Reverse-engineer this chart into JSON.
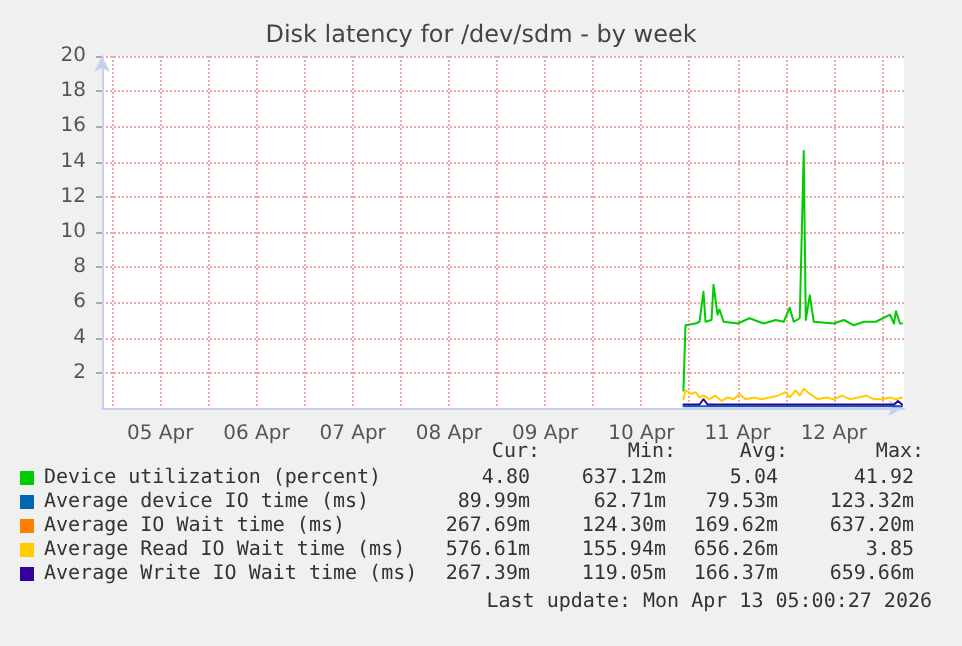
{
  "chart_data": {
    "type": "line",
    "title": "Disk latency for /dev/sdm - by week",
    "xlim": [
      "2026-04-04T21:30",
      "2026-04-13T05:30"
    ],
    "xticks": [
      {
        "value": "2026-04-05T00:00",
        "label": null
      },
      {
        "value": "2026-04-05T12:00",
        "label": "05 Apr"
      },
      {
        "value": "2026-04-06T00:00",
        "label": null
      },
      {
        "value": "2026-04-06T12:00",
        "label": "06 Apr"
      },
      {
        "value": "2026-04-07T00:00",
        "label": null
      },
      {
        "value": "2026-04-07T12:00",
        "label": "07 Apr"
      },
      {
        "value": "2026-04-08T00:00",
        "label": null
      },
      {
        "value": "2026-04-08T12:00",
        "label": "08 Apr"
      },
      {
        "value": "2026-04-09T00:00",
        "label": null
      },
      {
        "value": "2026-04-09T12:00",
        "label": "09 Apr"
      },
      {
        "value": "2026-04-10T00:00",
        "label": null
      },
      {
        "value": "2026-04-10T12:00",
        "label": "10 Apr"
      },
      {
        "value": "2026-04-11T00:00",
        "label": null
      },
      {
        "value": "2026-04-11T12:00",
        "label": "11 Apr"
      },
      {
        "value": "2026-04-12T00:00",
        "label": null
      },
      {
        "value": "2026-04-12T12:00",
        "label": "12 Apr"
      },
      {
        "value": "2026-04-13T00:00",
        "label": null
      }
    ],
    "ylim": [
      0,
      20
    ],
    "yticks": [
      2,
      4,
      6,
      8,
      10,
      12,
      14,
      16,
      18,
      20
    ],
    "grid": true,
    "legend": "bottom",
    "marker": "none",
    "line_style": "solid",
    "series": [
      {
        "name": "Device utilization (percent)",
        "color": "#00cc00",
        "x": [
          "2026-04-10T22:30",
          "2026-04-10T23:00",
          "2026-04-11T01:30",
          "2026-04-11T02:30",
          "2026-04-11T03:30",
          "2026-04-11T04:00",
          "2026-04-11T05:30",
          "2026-04-11T06:00",
          "2026-04-11T07:00",
          "2026-04-11T07:30",
          "2026-04-11T08:30",
          "2026-04-11T12:00",
          "2026-04-11T15:00",
          "2026-04-11T18:30",
          "2026-04-11T21:30",
          "2026-04-11T23:30",
          "2026-04-12T01:00",
          "2026-04-12T02:00",
          "2026-04-12T03:30",
          "2026-04-12T04:30",
          "2026-04-12T05:00",
          "2026-04-12T06:00",
          "2026-04-12T07:00",
          "2026-04-12T12:00",
          "2026-04-12T14:30",
          "2026-04-12T17:00",
          "2026-04-12T19:30",
          "2026-04-12T22:30",
          "2026-04-13T02:00",
          "2026-04-13T03:00",
          "2026-04-13T03:30",
          "2026-04-13T04:30",
          "2026-04-13T05:00"
        ],
        "values": [
          1.0,
          4.7,
          4.8,
          4.9,
          6.6,
          4.9,
          5.0,
          7.0,
          5.3,
          5.6,
          4.9,
          4.8,
          5.1,
          4.8,
          5.0,
          4.9,
          5.7,
          4.9,
          5.1,
          14.6,
          5.0,
          6.4,
          4.9,
          4.8,
          5.0,
          4.7,
          4.9,
          4.9,
          5.3,
          4.8,
          5.5,
          4.8,
          4.8
        ]
      },
      {
        "name": "Average device IO time (ms)",
        "color": "#0066b3",
        "x": [
          "2026-04-10T22:30",
          "2026-04-11T12:00",
          "2026-04-12T12:00",
          "2026-04-13T05:00"
        ],
        "values": [
          0.1,
          0.1,
          0.1,
          0.1
        ]
      },
      {
        "name": "Average IO Wait time (ms)",
        "color": "#ff8000"
      },
      {
        "name": "Average Read IO Wait time (ms)",
        "color": "#ffcc00",
        "x": [
          "2026-04-10T22:30",
          "2026-04-10T23:00",
          "2026-04-11T00:30",
          "2026-04-11T01:30",
          "2026-04-11T02:30",
          "2026-04-11T03:30",
          "2026-04-11T05:00",
          "2026-04-11T06:30",
          "2026-04-11T08:00",
          "2026-04-11T09:30",
          "2026-04-11T11:00",
          "2026-04-11T12:30",
          "2026-04-11T14:00",
          "2026-04-11T16:00",
          "2026-04-11T18:00",
          "2026-04-11T20:00",
          "2026-04-11T22:00",
          "2026-04-12T00:00",
          "2026-04-12T01:00",
          "2026-04-12T02:30",
          "2026-04-12T03:30",
          "2026-04-12T04:30",
          "2026-04-12T06:00",
          "2026-04-12T08:00",
          "2026-04-12T10:00",
          "2026-04-12T12:00",
          "2026-04-12T14:00",
          "2026-04-12T16:00",
          "2026-04-12T18:00",
          "2026-04-12T20:00",
          "2026-04-12T22:00",
          "2026-04-13T00:00",
          "2026-04-13T02:00",
          "2026-04-13T03:30",
          "2026-04-13T05:00"
        ],
        "values": [
          0.5,
          1.0,
          0.8,
          0.9,
          0.6,
          0.7,
          0.5,
          0.7,
          0.4,
          0.6,
          0.5,
          0.8,
          0.5,
          0.6,
          0.5,
          0.6,
          0.7,
          0.9,
          0.6,
          1.0,
          0.7,
          1.1,
          0.8,
          0.5,
          0.6,
          0.5,
          0.7,
          0.5,
          0.6,
          0.7,
          0.5,
          0.5,
          0.6,
          0.5,
          0.6
        ]
      },
      {
        "name": "Average Write IO Wait time (ms)",
        "color": "#330099",
        "x": [
          "2026-04-10T22:30",
          "2026-04-11T02:30",
          "2026-04-11T03:30",
          "2026-04-11T04:30",
          "2026-04-12T04:30",
          "2026-04-13T03:00",
          "2026-04-13T04:00",
          "2026-04-13T05:00"
        ],
        "values": [
          0.2,
          0.2,
          0.5,
          0.2,
          0.2,
          0.2,
          0.4,
          0.2
        ]
      }
    ],
    "annotations": [
      "Cur:",
      "Min:",
      "Avg:",
      "Max:",
      "4.80",
      "637.12m",
      "5.04",
      "41.92",
      "89.99m",
      "62.71m",
      "79.53m",
      "123.32m",
      "267.69m",
      "124.30m",
      "169.62m",
      "637.20m",
      "576.61m",
      "155.94m",
      "656.26m",
      "3.85",
      "267.39m",
      "119.05m",
      "166.37m",
      "659.66m",
      "Last update: Mon Apr 13 05:00:27 2026"
    ]
  }
}
